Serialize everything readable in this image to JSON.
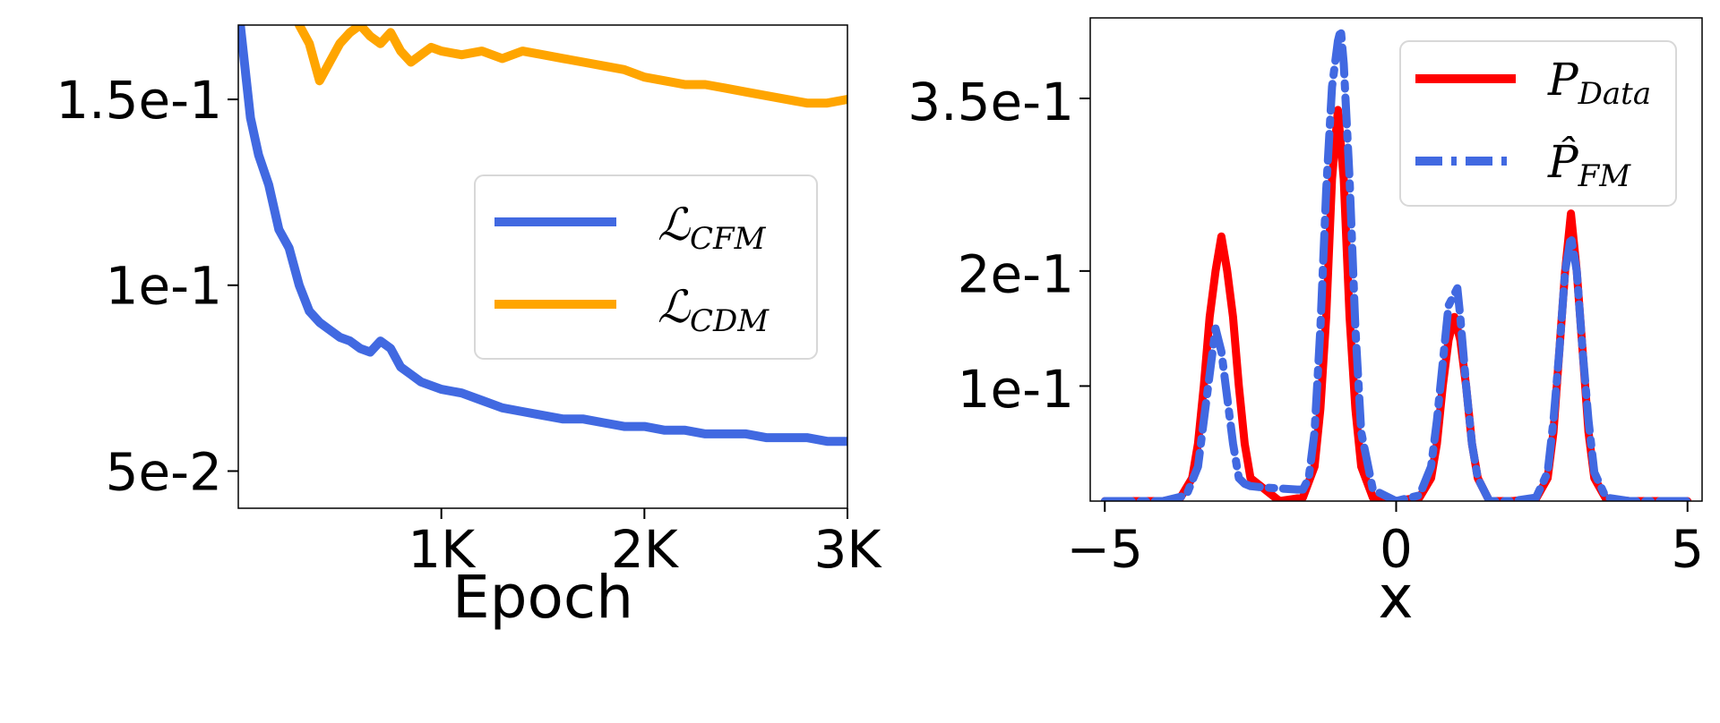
{
  "chart_data": [
    {
      "id": "loss",
      "type": "line",
      "title": "",
      "xlabel": "Epoch",
      "ylabel": "",
      "xlim": [
        0,
        3000
      ],
      "ylim": [
        0.04,
        0.17
      ],
      "xticks": [
        {
          "value": 1000,
          "label": "1K"
        },
        {
          "value": 2000,
          "label": "2K"
        },
        {
          "value": 3000,
          "label": "3K"
        }
      ],
      "yticks": [
        {
          "value": 0.05,
          "label": "5e-2"
        },
        {
          "value": 0.1,
          "label": "1e-1"
        },
        {
          "value": 0.15,
          "label": "1.5e-1"
        }
      ],
      "legend_position": "center-right",
      "series": [
        {
          "name": "L_CFM",
          "legend_main": "ℒ",
          "legend_sub": "CFM",
          "color": "#4169e1",
          "x": [
            0,
            30,
            60,
            100,
            150,
            200,
            250,
            300,
            350,
            400,
            450,
            500,
            550,
            600,
            650,
            700,
            750,
            800,
            850,
            900,
            950,
            1000,
            1100,
            1200,
            1300,
            1400,
            1500,
            1600,
            1700,
            1800,
            1900,
            2000,
            2100,
            2200,
            2300,
            2400,
            2500,
            2600,
            2700,
            2800,
            2900,
            3000
          ],
          "y": [
            0.175,
            0.16,
            0.145,
            0.135,
            0.127,
            0.115,
            0.11,
            0.1,
            0.093,
            0.09,
            0.088,
            0.086,
            0.085,
            0.083,
            0.082,
            0.085,
            0.083,
            0.078,
            0.076,
            0.074,
            0.073,
            0.072,
            0.071,
            0.069,
            0.067,
            0.066,
            0.065,
            0.064,
            0.064,
            0.063,
            0.062,
            0.062,
            0.061,
            0.061,
            0.06,
            0.06,
            0.06,
            0.059,
            0.059,
            0.059,
            0.058,
            0.058
          ]
        },
        {
          "name": "L_CDM",
          "legend_main": "ℒ",
          "legend_sub": "CDM",
          "color": "#ffa500",
          "x": [
            300,
            350,
            400,
            450,
            500,
            550,
            600,
            650,
            700,
            750,
            800,
            850,
            900,
            950,
            1000,
            1100,
            1200,
            1300,
            1400,
            1500,
            1600,
            1700,
            1800,
            1900,
            2000,
            2100,
            2200,
            2300,
            2400,
            2500,
            2600,
            2700,
            2800,
            2900,
            3000
          ],
          "y": [
            0.17,
            0.165,
            0.155,
            0.16,
            0.165,
            0.168,
            0.17,
            0.167,
            0.165,
            0.168,
            0.163,
            0.16,
            0.162,
            0.164,
            0.163,
            0.162,
            0.163,
            0.161,
            0.163,
            0.162,
            0.161,
            0.16,
            0.159,
            0.158,
            0.156,
            0.155,
            0.154,
            0.154,
            0.153,
            0.152,
            0.151,
            0.15,
            0.149,
            0.149,
            0.15
          ]
        }
      ]
    },
    {
      "id": "density",
      "type": "line",
      "title": "",
      "xlabel": "x",
      "ylabel": "",
      "xlim": [
        -5.25,
        5.25
      ],
      "ylim": [
        0,
        0.42
      ],
      "xticks": [
        {
          "value": -5,
          "label": "−5"
        },
        {
          "value": 0,
          "label": "0"
        },
        {
          "value": 5,
          "label": "5"
        }
      ],
      "yticks": [
        {
          "value": 0.1,
          "label": "1e-1"
        },
        {
          "value": 0.2,
          "label": "2e-1"
        },
        {
          "value": 0.35,
          "label": "3.5e-1"
        }
      ],
      "legend_position": "upper-right",
      "series": [
        {
          "name": "P_Data",
          "legend_main": "P",
          "legend_sub": "Data",
          "color": "#ff0000",
          "linestyle": "solid",
          "x": [
            -5.0,
            -4.5,
            -4.0,
            -3.7,
            -3.5,
            -3.4,
            -3.3,
            -3.2,
            -3.1,
            -3.0,
            -2.9,
            -2.8,
            -2.7,
            -2.6,
            -2.5,
            -2.0,
            -1.6,
            -1.4,
            -1.3,
            -1.2,
            -1.1,
            -1.0,
            -0.9,
            -0.8,
            -0.7,
            -0.6,
            -0.4,
            0.0,
            0.4,
            0.6,
            0.7,
            0.8,
            0.9,
            1.0,
            1.1,
            1.2,
            1.3,
            1.4,
            1.6,
            2.0,
            2.4,
            2.6,
            2.7,
            2.8,
            2.9,
            3.0,
            3.1,
            3.2,
            3.3,
            3.4,
            3.6,
            4.0,
            5.0
          ],
          "y": [
            0.0,
            0.0,
            0.0,
            0.003,
            0.02,
            0.05,
            0.1,
            0.16,
            0.2,
            0.23,
            0.2,
            0.16,
            0.1,
            0.05,
            0.02,
            0.0,
            0.003,
            0.03,
            0.08,
            0.16,
            0.28,
            0.34,
            0.28,
            0.16,
            0.08,
            0.03,
            0.003,
            0.0,
            0.003,
            0.02,
            0.05,
            0.1,
            0.14,
            0.16,
            0.14,
            0.1,
            0.05,
            0.02,
            0.0,
            0.0,
            0.002,
            0.02,
            0.06,
            0.13,
            0.2,
            0.25,
            0.2,
            0.13,
            0.06,
            0.02,
            0.002,
            0.0,
            0.0
          ]
        },
        {
          "name": "P_FM",
          "legend_main": "P̂",
          "legend_sub": "FM",
          "color": "#4169e1",
          "linestyle": "dashdot",
          "x": [
            -5.0,
            -4.5,
            -4.0,
            -3.6,
            -3.4,
            -3.3,
            -3.2,
            -3.1,
            -3.0,
            -2.9,
            -2.8,
            -2.7,
            -2.6,
            -2.5,
            -2.3,
            -2.0,
            -1.7,
            -1.6,
            -1.5,
            -1.4,
            -1.3,
            -1.2,
            -1.1,
            -1.0,
            -0.95,
            -0.9,
            -0.8,
            -0.7,
            -0.6,
            -0.4,
            0.0,
            0.4,
            0.6,
            0.7,
            0.8,
            0.9,
            1.0,
            1.05,
            1.1,
            1.2,
            1.3,
            1.4,
            1.6,
            2.0,
            2.4,
            2.6,
            2.7,
            2.8,
            2.9,
            3.0,
            3.1,
            3.2,
            3.3,
            3.4,
            3.6,
            4.0,
            5.0
          ],
          "y": [
            0.0,
            0.0,
            0.0,
            0.005,
            0.03,
            0.07,
            0.11,
            0.15,
            0.13,
            0.09,
            0.05,
            0.02,
            0.015,
            0.013,
            0.012,
            0.011,
            0.01,
            0.01,
            0.02,
            0.06,
            0.15,
            0.27,
            0.36,
            0.4,
            0.41,
            0.38,
            0.28,
            0.15,
            0.06,
            0.01,
            0.0,
            0.005,
            0.03,
            0.07,
            0.12,
            0.17,
            0.18,
            0.185,
            0.16,
            0.1,
            0.05,
            0.02,
            0.0,
            0.0,
            0.003,
            0.025,
            0.07,
            0.13,
            0.2,
            0.23,
            0.2,
            0.13,
            0.07,
            0.025,
            0.003,
            0.0,
            0.0
          ]
        }
      ]
    }
  ]
}
